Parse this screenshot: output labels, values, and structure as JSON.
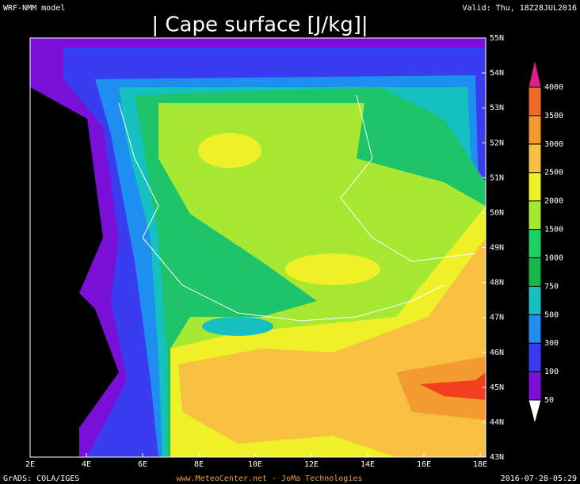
{
  "header": {
    "model": "WRF-NMM model",
    "title": "| Cape surface [J/kg]|",
    "valid": "Valid: Thu, 18Z28JUL2016"
  },
  "map": {
    "latitude_labels": [
      "55N",
      "54N",
      "53N",
      "52N",
      "51N",
      "50N",
      "49N",
      "48N",
      "47N",
      "46N",
      "45N",
      "44N",
      "43N"
    ],
    "longitude_labels": [
      "2E",
      "4E",
      "6E",
      "8E",
      "10E",
      "12E",
      "14E",
      "16E",
      "18E"
    ]
  },
  "legend": {
    "labels": [
      "50",
      "100",
      "300",
      "500",
      "750",
      "1000",
      "1500",
      "2000",
      "2500",
      "3000",
      "3500",
      "4000"
    ]
  },
  "footer": {
    "software": "GrADS: COLA/IGES",
    "source": "www.MeteoCenter.net  -  JoMa Technologies",
    "timestamp": "2016-07-28-05:29"
  }
}
